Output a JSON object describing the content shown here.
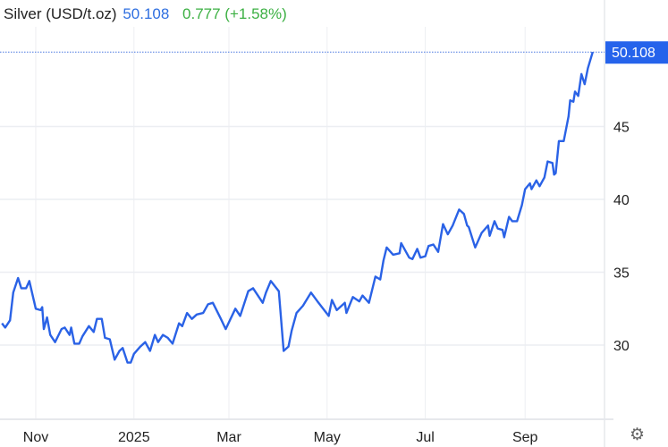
{
  "header": {
    "title": "Silver (USD/t.oz)",
    "last_price": "50.108",
    "change": "0.777 (+1.58%)"
  },
  "colors": {
    "line": "#2a62e6",
    "last_price": "#2f6fe0",
    "change": "#3cb043",
    "price_tag": "#2563eb"
  },
  "settings_icon": "gear-icon",
  "chart_data": {
    "type": "line",
    "title": "Silver (USD/t.oz)",
    "xlabel": "",
    "ylabel": "",
    "x_ticks": [
      {
        "date": "2024-11-01",
        "label": "Nov"
      },
      {
        "date": "2025-01-01",
        "label": "2025"
      },
      {
        "date": "2025-03-01",
        "label": "Mar"
      },
      {
        "date": "2025-05-01",
        "label": "May"
      },
      {
        "date": "2025-07-01",
        "label": "Jul"
      },
      {
        "date": "2025-09-01",
        "label": "Sep"
      }
    ],
    "y_ticks": [
      30,
      35,
      40,
      45
    ],
    "y_tick_labels": [
      "30",
      "35",
      "40",
      "45"
    ],
    "ylim": [
      24.9,
      60
    ],
    "y_axis_side": "right",
    "grid": true,
    "last_value_label": "50.108",
    "series": [
      {
        "x": [
          "2024-10-11",
          "2024-10-13",
          "2024-10-16",
          "2024-10-18",
          "2024-10-21",
          "2024-10-23",
          "2024-10-26",
          "2024-10-28",
          "2024-11-01",
          "2024-11-04",
          "2024-11-05",
          "2024-11-06",
          "2024-11-08",
          "2024-11-10",
          "2024-11-13",
          "2024-11-17",
          "2024-11-19",
          "2024-11-22",
          "2024-11-23",
          "2024-11-25",
          "2024-11-28",
          "2024-11-30",
          "2024-12-04",
          "2024-12-07",
          "2024-12-09",
          "2024-12-12",
          "2024-12-14",
          "2024-12-17",
          "2024-12-20",
          "2024-12-23",
          "2024-12-25",
          "2024-12-28",
          "2024-12-30",
          "2025-01-01",
          "2025-01-05",
          "2025-01-08",
          "2025-01-11",
          "2025-01-14",
          "2025-01-16",
          "2025-01-19",
          "2025-01-22",
          "2025-01-25",
          "2025-01-29",
          "2025-01-31",
          "2025-02-03",
          "2025-02-06",
          "2025-02-09",
          "2025-02-13",
          "2025-02-16",
          "2025-02-19",
          "2025-02-24",
          "2025-02-27",
          "2025-03-05",
          "2025-03-08",
          "2025-03-13",
          "2025-03-16",
          "2025-03-22",
          "2025-03-24",
          "2025-03-27",
          "2025-04-01",
          "2025-04-04",
          "2025-04-07",
          "2025-04-09",
          "2025-04-12",
          "2025-04-16",
          "2025-04-21",
          "2025-04-25",
          "2025-05-02",
          "2025-05-04",
          "2025-05-07",
          "2025-05-12",
          "2025-05-13",
          "2025-05-17",
          "2025-05-21",
          "2025-05-23",
          "2025-05-27",
          "2025-05-31",
          "2025-06-03",
          "2025-06-05",
          "2025-06-07",
          "2025-06-11",
          "2025-06-15",
          "2025-06-16",
          "2025-06-21",
          "2025-06-23",
          "2025-06-26",
          "2025-06-28",
          "2025-07-01",
          "2025-07-03",
          "2025-07-06",
          "2025-07-09",
          "2025-07-12",
          "2025-07-15",
          "2025-07-18",
          "2025-07-22",
          "2025-07-25",
          "2025-07-27",
          "2025-07-28",
          "2025-08-01",
          "2025-08-05",
          "2025-08-09",
          "2025-08-10",
          "2025-08-13",
          "2025-08-15",
          "2025-08-18",
          "2025-08-19",
          "2025-08-22",
          "2025-08-24",
          "2025-08-27",
          "2025-08-30",
          "2025-09-01",
          "2025-09-04",
          "2025-09-05",
          "2025-09-08",
          "2025-09-10",
          "2025-09-13",
          "2025-09-15",
          "2025-09-18",
          "2025-09-19",
          "2025-09-20",
          "2025-09-22",
          "2025-09-25",
          "2025-09-28",
          "2025-09-29",
          "2025-10-01",
          "2025-10-02",
          "2025-10-04",
          "2025-10-06",
          "2025-10-08",
          "2025-10-10",
          "2025-10-13"
        ],
        "values": [
          31.5,
          31.2,
          31.7,
          33.6,
          34.6,
          33.9,
          33.9,
          34.4,
          32.5,
          32.4,
          32.6,
          31.1,
          31.9,
          30.7,
          30.2,
          31.1,
          31.2,
          30.7,
          31.2,
          30.1,
          30.1,
          30.6,
          31.3,
          30.9,
          31.8,
          31.8,
          30.5,
          30.4,
          29.0,
          29.6,
          29.8,
          28.8,
          28.8,
          29.4,
          29.9,
          30.2,
          29.6,
          30.7,
          30.2,
          30.7,
          30.5,
          30.1,
          31.5,
          31.3,
          32.2,
          31.8,
          32.1,
          32.2,
          32.8,
          32.9,
          31.8,
          31.1,
          32.5,
          32.0,
          33.7,
          33.9,
          32.9,
          33.6,
          34.4,
          33.7,
          29.6,
          29.9,
          31.0,
          32.2,
          32.7,
          33.6,
          33.0,
          32.0,
          33.1,
          32.4,
          32.9,
          32.2,
          33.3,
          33.0,
          33.4,
          32.9,
          34.7,
          34.5,
          35.8,
          36.7,
          36.2,
          36.3,
          37.0,
          36.0,
          35.9,
          36.6,
          36.0,
          36.1,
          36.8,
          36.9,
          36.4,
          38.3,
          37.6,
          38.2,
          39.3,
          39.0,
          38.2,
          38.1,
          36.7,
          37.7,
          38.2,
          37.5,
          38.5,
          38.0,
          37.9,
          37.4,
          38.8,
          38.5,
          38.5,
          39.6,
          40.7,
          41.1,
          40.7,
          41.3,
          40.9,
          41.5,
          42.6,
          42.5,
          41.7,
          41.8,
          44.0,
          44.0,
          45.7,
          46.8,
          46.7,
          47.4,
          47.1,
          48.6,
          47.9,
          49.0,
          50.108
        ]
      }
    ]
  }
}
